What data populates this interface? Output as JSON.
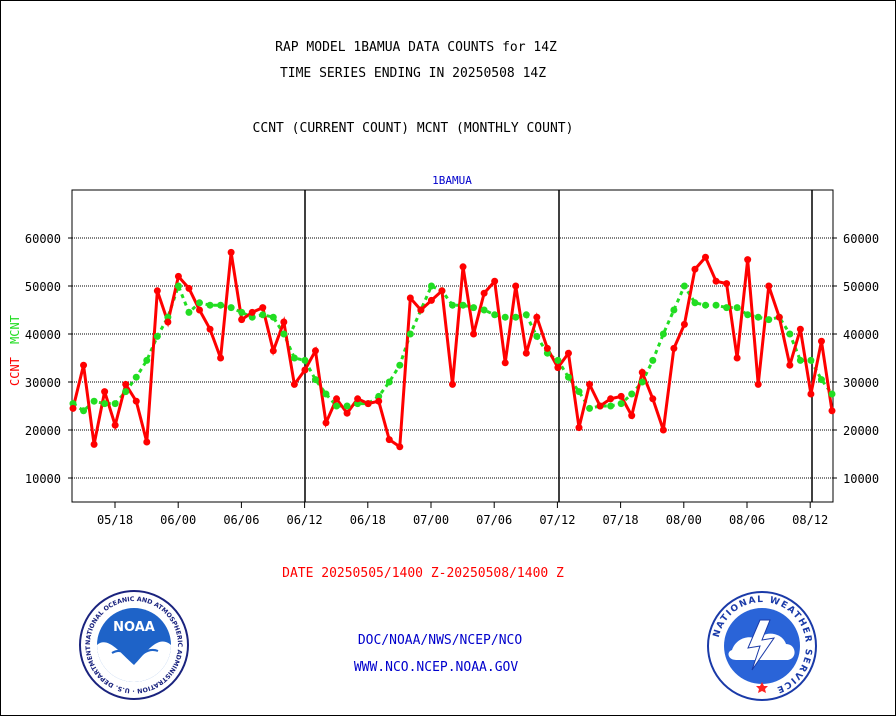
{
  "header": {
    "title_line1": "RAP MODEL 1BAMUA DATA COUNTS for 14Z",
    "title_line2": "TIME SERIES ENDING IN 20250508 14Z",
    "subtitle": "CCNT (CURRENT COUNT) MCNT (MONTHLY COUNT)"
  },
  "chart_data": {
    "type": "line",
    "title": "1BAMUA",
    "xlabel": "DATE 20250505/1400 Z-20250508/1400 Z",
    "ylabel_left": "CCNT",
    "ylabel_right": "MCNT",
    "x_tick_labels": [
      "05/18",
      "06/00",
      "06/06",
      "06/12",
      "06/18",
      "07/00",
      "07/06",
      "07/12",
      "07/18",
      "08/00",
      "08/06",
      "08/12"
    ],
    "y_ticks": [
      10000,
      20000,
      30000,
      40000,
      50000,
      60000
    ],
    "ylim": [
      5000,
      70000
    ],
    "grid": true,
    "colors": {
      "ccnt": "#ff0000",
      "mcnt": "#22dd22",
      "title": "#0000cc",
      "date": "#ff0000"
    },
    "series": [
      {
        "name": "CCNT",
        "values": [
          24500,
          33500,
          17000,
          28000,
          21000,
          29500,
          26000,
          17500,
          49000,
          42500,
          52000,
          49500,
          45000,
          41000,
          35000,
          57000,
          43000,
          44500,
          45500,
          36500,
          42500,
          29500,
          32500,
          36500,
          21500,
          26500,
          23500,
          26500,
          25500,
          26000,
          18000,
          16500,
          47500,
          45000,
          47000,
          49000,
          29500,
          54000,
          40000,
          48500,
          51000,
          34000,
          50000,
          36000,
          43500,
          37000,
          33000,
          36000,
          20500,
          29500,
          25000,
          26500,
          27000,
          23000,
          32000,
          26500,
          20000,
          37000,
          42000,
          53500,
          56000,
          51000,
          50500,
          35000,
          55500,
          29500,
          50000,
          43500,
          33500,
          41000,
          27500,
          38500,
          24000
        ]
      },
      {
        "name": "MCNT",
        "values": [
          25500,
          24000,
          26000,
          25500,
          25500,
          28000,
          31000,
          34500,
          39500,
          43500,
          50000,
          44500,
          46500,
          46000,
          46000,
          45500,
          44500,
          43500,
          44000,
          43500,
          40000,
          35000,
          34500,
          30500,
          27500,
          25000,
          25000,
          25500,
          25500,
          27000,
          30000,
          33500,
          40000,
          45000,
          50000,
          49000,
          46000,
          46000,
          45500,
          45000,
          44000,
          43500,
          43500,
          44000,
          39500,
          36000,
          34500,
          31000,
          28000,
          24500,
          25000,
          25000,
          25500,
          27500,
          30000,
          34500,
          40000,
          45000,
          50000,
          46500,
          46000,
          46000,
          45500,
          45500,
          44000,
          43500,
          43000,
          43500,
          40000,
          34500,
          34500,
          30500,
          27500
        ]
      }
    ]
  },
  "footer": {
    "org_line1": "DOC/NOAA/NWS/NCEP/NCO",
    "org_line2": "WWW.NCO.NCEP.NOAA.GOV",
    "noaa_logo_text": "NOAA",
    "noaa_ring_text": "NATIONAL OCEANIC AND ATMOSPHERIC ADMINISTRATION · U.S. DEPARTMENT OF COMMERCE",
    "nws_ring_text": "NATIONAL WEATHER SERVICE"
  }
}
